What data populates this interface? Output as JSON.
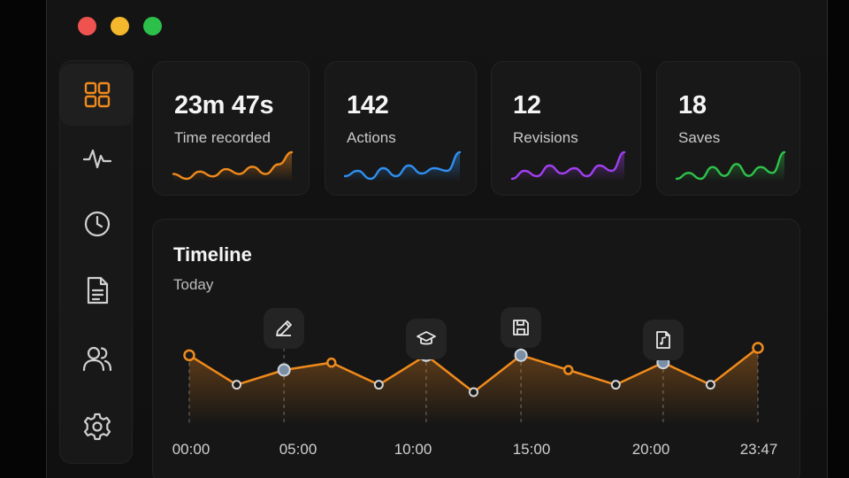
{
  "window": {
    "controls": [
      "close",
      "minimize",
      "maximize"
    ]
  },
  "sidebar": {
    "items": [
      {
        "icon": "grid-icon",
        "active": true
      },
      {
        "icon": "activity-icon",
        "active": false
      },
      {
        "icon": "clock-icon",
        "active": false
      },
      {
        "icon": "document-icon",
        "active": false
      },
      {
        "icon": "users-icon",
        "active": false
      },
      {
        "icon": "gear-icon",
        "active": false
      }
    ]
  },
  "stats": [
    {
      "value": "23m 47s",
      "label": "Time recorded",
      "color": "#f08a1c",
      "trend": [
        5,
        3,
        6,
        4,
        7,
        5,
        8,
        5,
        9,
        14
      ]
    },
    {
      "value": "142",
      "label": "Actions",
      "color": "#2f8ff0",
      "trend": [
        5,
        7,
        4,
        8,
        5,
        9,
        6,
        8,
        7,
        14
      ]
    },
    {
      "value": "12",
      "label": "Revisions",
      "color": "#a23ff0",
      "trend": [
        4,
        7,
        5,
        9,
        6,
        8,
        5,
        9,
        7,
        14
      ]
    },
    {
      "value": "18",
      "label": "Saves",
      "color": "#2fc24a",
      "trend": [
        4,
        6,
        4,
        8,
        5,
        9,
        5,
        8,
        6,
        13
      ]
    }
  ],
  "timeline": {
    "title": "Timeline",
    "subtitle": "Today",
    "accent": "#f08a1c",
    "ticks": [
      "00:00",
      "05:00",
      "10:00",
      "15:00",
      "20:00",
      "23:47"
    ],
    "points": [
      7,
      3,
      5,
      6,
      3,
      7,
      2,
      7,
      5,
      3,
      6,
      3,
      8
    ],
    "events": [
      {
        "icon": "pencil-icon",
        "point": 2
      },
      {
        "icon": "graduation-cap-icon",
        "point": 5
      },
      {
        "icon": "save-icon",
        "point": 7
      },
      {
        "icon": "file-audio-icon",
        "point": 10
      }
    ]
  }
}
